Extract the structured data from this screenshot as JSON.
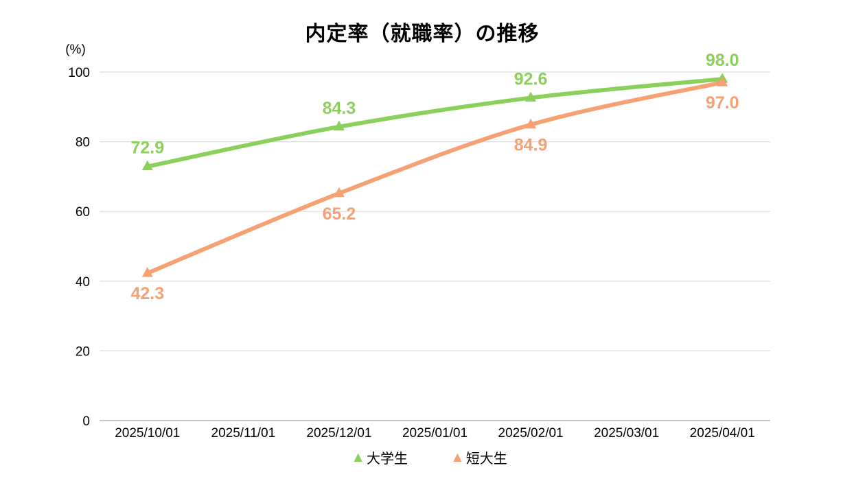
{
  "chart_data": {
    "type": "line",
    "title": "内定率（就職率）の推移",
    "y_unit_label": "(%)",
    "y_ticks": [
      0,
      20,
      40,
      60,
      80,
      100
    ],
    "ylim": [
      0,
      100
    ],
    "x_categories": [
      "2025/10/01",
      "2025/11/01",
      "2025/12/01",
      "2025/01/01",
      "2025/02/01",
      "2025/03/01",
      "2025/04/01"
    ],
    "grid": "horizontal",
    "legend_position": "bottom",
    "colors": {
      "gridline": "#DBDBDB",
      "axis_line": "#B3B3B3",
      "tick_text": "#000000"
    },
    "series": [
      {
        "name": "大学生",
        "color": "#8CD05C",
        "marker": "triangle-up",
        "label_side": "above",
        "points": [
          {
            "x": "2025/10/01",
            "y": 72.9
          },
          {
            "x": "2025/12/01",
            "y": 84.3
          },
          {
            "x": "2025/02/01",
            "y": 92.6
          },
          {
            "x": "2025/04/01",
            "y": 98.0
          }
        ]
      },
      {
        "name": "短大生",
        "color": "#F6A173",
        "marker": "triangle-up",
        "label_side": "below",
        "points": [
          {
            "x": "2025/10/01",
            "y": 42.3
          },
          {
            "x": "2025/12/01",
            "y": 65.2
          },
          {
            "x": "2025/02/01",
            "y": 84.9
          },
          {
            "x": "2025/04/01",
            "y": 97.0
          }
        ]
      }
    ]
  }
}
